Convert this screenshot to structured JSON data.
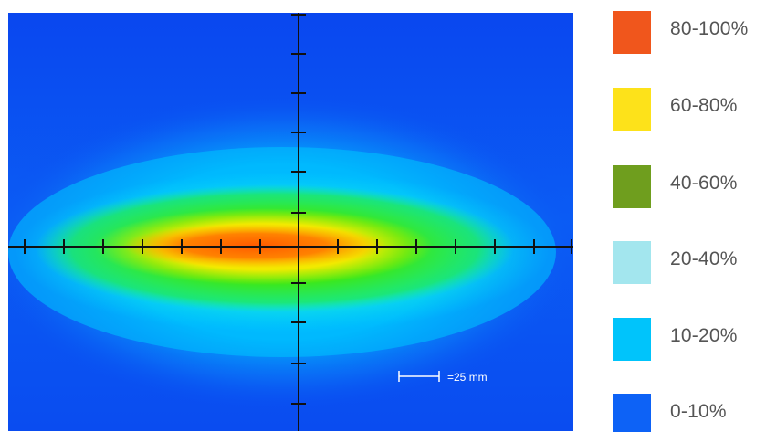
{
  "heatmap": {
    "scale_label": "=25 mm",
    "colors": {
      "background": "#0b4ef2",
      "axis": "#111111"
    }
  },
  "legend": {
    "items": [
      {
        "label": "80-100%",
        "color": "#f0561c"
      },
      {
        "label": "60-80%",
        "color": "#fde21a"
      },
      {
        "label": "40-60%",
        "color": "#6f9e1e"
      },
      {
        "label": "20-40%",
        "color": "#a3e6ee"
      },
      {
        "label": "10-20%",
        "color": "#00c4fb"
      },
      {
        "label": "0-10%",
        "color": "#0d62f6"
      }
    ]
  }
}
